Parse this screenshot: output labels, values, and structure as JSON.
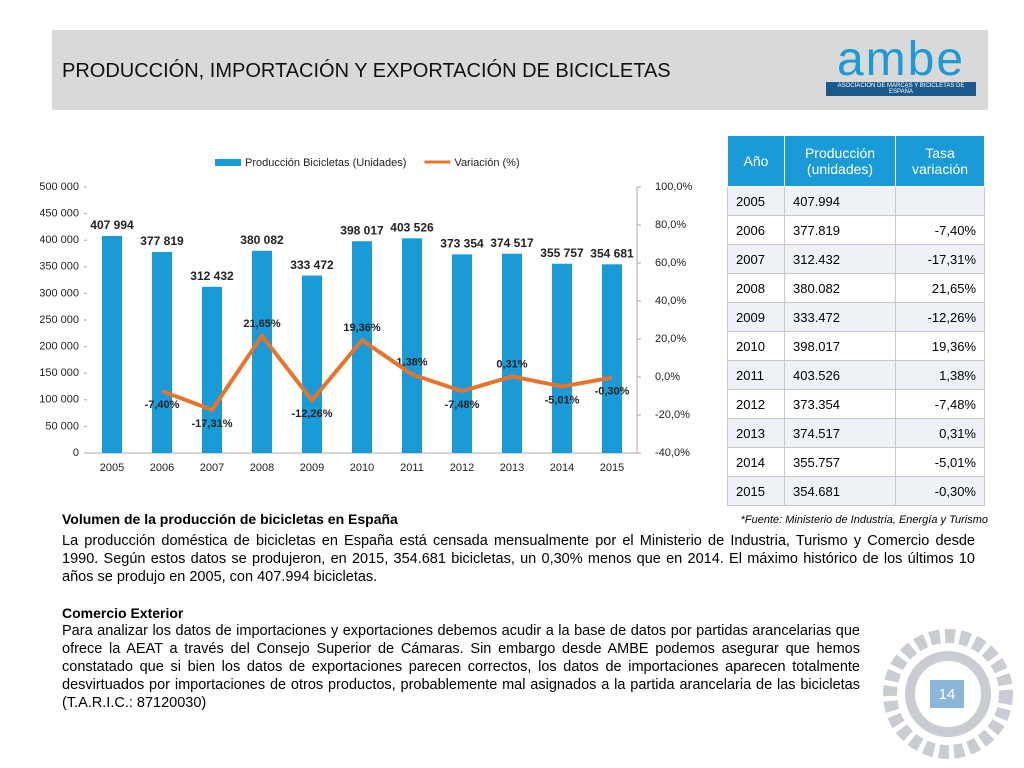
{
  "header": {
    "title": "PRODUCCIÓN, IMPORTACIÓN Y EXPORTACIÓN DE BICICLETAS",
    "logo": "ambe",
    "logo_subtitle": "ASOCIACIÓN DE MARCAS Y BICICLETAS DE ESPAÑA"
  },
  "chart_data": {
    "type": "combo",
    "categories": [
      "2005",
      "2006",
      "2007",
      "2008",
      "2009",
      "2010",
      "2011",
      "2012",
      "2013",
      "2014",
      "2015"
    ],
    "series": [
      {
        "name": "Producción Bicicletas (Unidades)",
        "type": "bar",
        "color": "#1a9ad6",
        "values": [
          407994,
          377819,
          312432,
          380082,
          333472,
          398017,
          403526,
          373354,
          374517,
          355757,
          354681
        ],
        "value_labels": [
          "407 994",
          "377 819",
          "312 432",
          "380 082",
          "333 472",
          "398 017",
          "403 526",
          "373 354",
          "374 517",
          "355 757",
          "354 681"
        ]
      },
      {
        "name": "Variación (%)",
        "type": "line",
        "color": "#e8742a",
        "axis": "y2",
        "values": [
          null,
          -7.4,
          -17.31,
          21.65,
          -12.26,
          19.36,
          1.38,
          -7.48,
          0.31,
          -5.01,
          -0.3
        ],
        "value_labels": [
          null,
          "-7,40%",
          "-17,31%",
          "21,65%",
          "-12,26%",
          "19,36%",
          "1,38%",
          "-7,48%",
          "0,31%",
          "-5,01%",
          "-0,30%"
        ]
      }
    ],
    "ylim": [
      0,
      500000
    ],
    "yticks": [
      0,
      {
        "value": 50000,
        "label": "50 000"
      },
      {
        "value": 100000,
        "label": "100 000"
      },
      {
        "value": 150000,
        "label": "150 000"
      },
      {
        "value": 200000,
        "label": "200 000"
      },
      {
        "value": 250000,
        "label": "250 000"
      },
      {
        "value": 300000,
        "label": "300 000"
      },
      {
        "value": 350000,
        "label": "350 000"
      },
      {
        "value": 400000,
        "label": "400 000"
      },
      {
        "value": 450000,
        "label": "450 000"
      },
      {
        "value": 500000,
        "label": "500 000"
      }
    ],
    "y2lim": [
      -40,
      100
    ],
    "y2ticks": [
      {
        "value": -40,
        "label": "-40,0%"
      },
      {
        "value": -20,
        "label": "-20,0%"
      },
      {
        "value": 0,
        "label": "0,0%"
      },
      {
        "value": 20,
        "label": "20,0%"
      },
      {
        "value": 40,
        "label": "40,0%"
      },
      {
        "value": 60,
        "label": "60,0%"
      },
      {
        "value": 80,
        "label": "80,0%"
      },
      {
        "value": 100,
        "label": "100,0%"
      }
    ],
    "grid": false,
    "legend": "top"
  },
  "table": {
    "header": [
      "Año",
      "Producción (unidades)",
      "Tasa variación"
    ],
    "rows": [
      [
        "2005",
        "407.994"
      ],
      [
        "2006",
        "377.819",
        "-7,40%"
      ],
      [
        "2007",
        "312.432",
        "-17,31%"
      ],
      [
        "2008",
        "380.082",
        "21,65%"
      ],
      [
        "2009",
        "333.472",
        "-12,26%"
      ],
      [
        "2010",
        "398.017",
        "19,36%"
      ],
      [
        "2011",
        "403.526",
        "1,38%"
      ],
      [
        "2012",
        "373.354",
        "-7,48%"
      ],
      [
        "2013",
        "374.517",
        "0,31%"
      ],
      [
        "2014",
        "355.757",
        "-5,01%"
      ],
      [
        "2015",
        "354.681",
        "-0,30%"
      ]
    ]
  },
  "source": "*Fuente: Ministerio de Industria, Energía y Turismo",
  "section1": {
    "heading": "Volumen de la producción de bicicletas en España",
    "body": "La producción doméstica de bicicletas en España está censada mensualmente por el Ministerio de Industria, Turismo y Comercio desde 1990. Según estos datos se produjeron, en 2015, 354.681 bicicletas, un 0,30% menos que en 2014. El máximo histórico de los últimos 10 años se produjo en 2005, con 407.994 bicicletas."
  },
  "section2": {
    "heading": "Comercio Exterior",
    "body": "Para analizar los datos de importaciones y exportaciones debemos acudir a la base de datos por partidas arancelarias que ofrece la AEAT a través del Consejo Superior de Cámaras. Sin embargo desde AMBE podemos asegurar que hemos constatado que si bien los datos de exportaciones parecen correctos, los datos de importaciones aparecen totalmente desvirtuados por importaciones de otros productos, probablemente mal asignados a la partida arancelaria de las bicicletas (T.A.R.I.C.: 87120030)"
  },
  "page_number": "14"
}
